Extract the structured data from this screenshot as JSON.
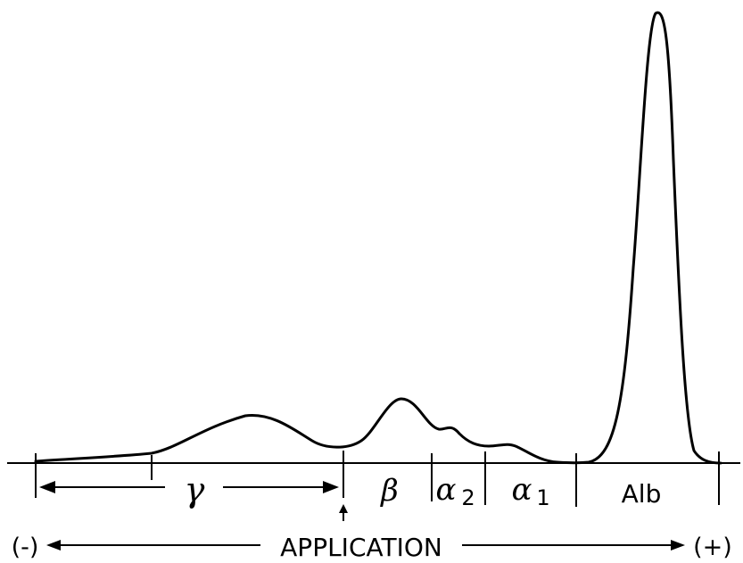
{
  "labels": {
    "gamma": "γ",
    "beta": "β",
    "alpha2_base": "α",
    "alpha2_sub": "2",
    "alpha1_base": "α",
    "alpha1_sub": "1",
    "albumin": "Alb",
    "application": "APPLICATION",
    "negative": "(-)",
    "positive": "(+)"
  },
  "colors": {
    "ink": "#000000",
    "background": "#ffffff"
  }
}
